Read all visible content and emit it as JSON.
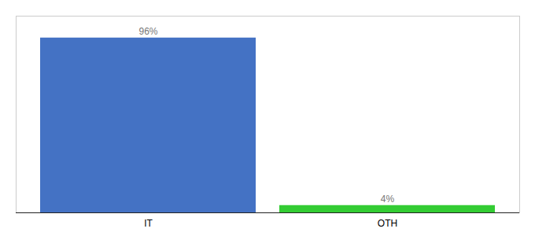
{
  "chart_data": {
    "type": "bar",
    "categories": [
      "IT",
      "OTH"
    ],
    "values": [
      96,
      4
    ],
    "value_labels": [
      "96%",
      "4%"
    ],
    "colors": [
      "#4472c4",
      "#33cc33"
    ],
    "ylim": [
      0,
      108
    ],
    "data_labels": true,
    "tick_labels": "x"
  }
}
